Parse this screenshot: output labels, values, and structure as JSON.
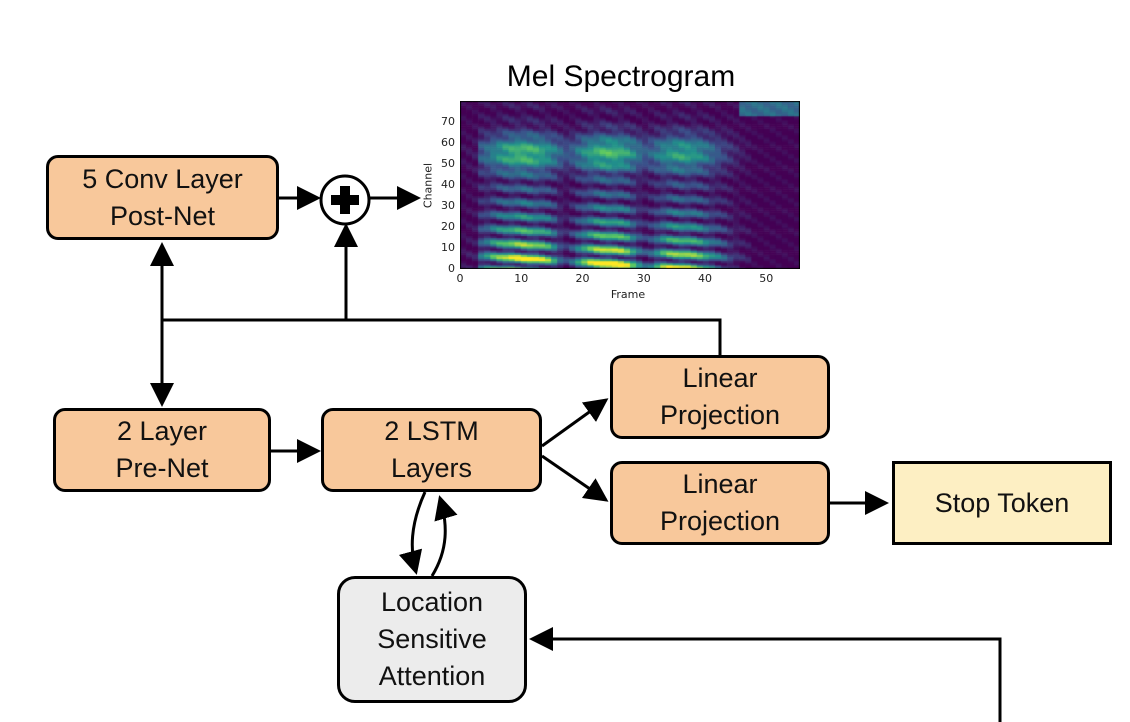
{
  "nodes": {
    "postnet": {
      "lines": [
        "5 Conv Layer",
        "Post-Net"
      ]
    },
    "prenet": {
      "lines": [
        "2 Layer",
        "Pre-Net"
      ]
    },
    "lstm": {
      "lines": [
        "2 LSTM",
        "Layers"
      ]
    },
    "linear_top": {
      "lines": [
        "Linear",
        "Projection"
      ]
    },
    "linear_bottom": {
      "lines": [
        "Linear",
        "Projection"
      ]
    },
    "stop": {
      "lines": [
        "Stop Token"
      ]
    },
    "attention": {
      "lines": [
        "Location",
        "Sensitive",
        "Attention"
      ]
    }
  },
  "adder_symbol": "+",
  "spectrogram": {
    "title": "Mel Spectrogram",
    "xlabel": "Frame",
    "ylabel": "Channel",
    "xticks": [
      "0",
      "10",
      "20",
      "30",
      "40",
      "50"
    ],
    "yticks": [
      "0",
      "10",
      "20",
      "30",
      "40",
      "50",
      "60",
      "70"
    ],
    "colormap": [
      "#440154",
      "#3b528b",
      "#21918c",
      "#5ec962",
      "#fde725"
    ]
  }
}
